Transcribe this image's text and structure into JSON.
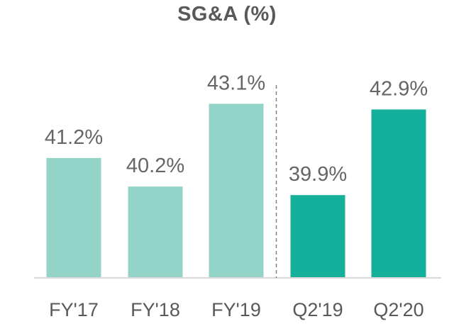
{
  "chart_data": {
    "type": "bar",
    "title": "SG&A (%)",
    "xlabel": "",
    "ylabel": "",
    "categories": [
      "FY'17",
      "FY'18",
      "FY'19",
      "Q2'19",
      "Q2'20"
    ],
    "values": [
      41.2,
      40.2,
      43.1,
      39.9,
      42.9
    ],
    "value_labels": [
      "41.2%",
      "40.2%",
      "43.1%",
      "39.9%",
      "42.9%"
    ],
    "ylim": [
      37.0,
      44.5
    ],
    "grid": false,
    "legend": "none",
    "separator_after_index": 2,
    "colors": {
      "annual": "#93d3c8",
      "quarterly": "#14b09b",
      "axis": "#d9d9d9",
      "separator": "#7f7f7f",
      "text": "#595959"
    },
    "bar_color_groups": [
      "annual",
      "annual",
      "annual",
      "quarterly",
      "quarterly"
    ]
  }
}
